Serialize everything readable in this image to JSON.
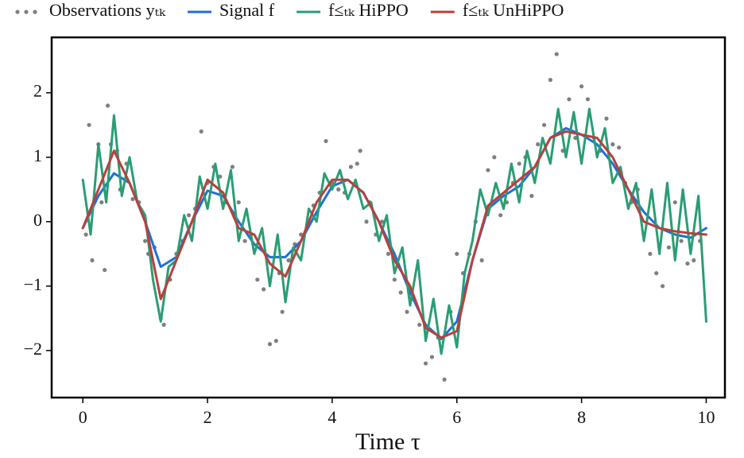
{
  "chart_data": {
    "type": "line",
    "x_label": "Time τ",
    "xlim": [
      -0.5,
      10.3
    ],
    "ylim": [
      -2.73,
      2.86
    ],
    "xticks": [
      0,
      2,
      4,
      6,
      8,
      10
    ],
    "yticks": [
      -2,
      -1,
      0,
      1,
      2
    ],
    "grid": false,
    "legend": "top",
    "series": [
      {
        "name": "Observations yₜₖ",
        "color": "#7f7f7f",
        "style": "scatter",
        "x": [
          0.05,
          0.1,
          0.15,
          0.25,
          0.3,
          0.35,
          0.4,
          0.45,
          0.55,
          0.6,
          0.7,
          0.8,
          0.9,
          1.0,
          1.05,
          1.15,
          1.25,
          1.3,
          1.4,
          1.5,
          1.6,
          1.7,
          1.8,
          1.9,
          2.0,
          2.1,
          2.2,
          2.3,
          2.4,
          2.5,
          2.6,
          2.7,
          2.8,
          2.9,
          3.0,
          3.1,
          3.15,
          3.2,
          3.3,
          3.4,
          3.5,
          3.6,
          3.7,
          3.8,
          3.9,
          4.0,
          4.1,
          4.2,
          4.3,
          4.4,
          4.45,
          4.55,
          4.6,
          4.7,
          4.8,
          4.9,
          5.0,
          5.1,
          5.2,
          5.3,
          5.4,
          5.5,
          5.6,
          5.7,
          5.8,
          5.9,
          6.0,
          6.1,
          6.2,
          6.3,
          6.4,
          6.5,
          6.6,
          6.7,
          6.8,
          6.9,
          7.0,
          7.1,
          7.2,
          7.3,
          7.4,
          7.5,
          7.6,
          7.7,
          7.8,
          7.9,
          8.0,
          8.1,
          8.2,
          8.3,
          8.4,
          8.5,
          8.6,
          8.7,
          8.8,
          8.9,
          9.0,
          9.1,
          9.2,
          9.3,
          9.4,
          9.5,
          9.6,
          9.7,
          9.8,
          9.9
        ],
        "values": [
          -0.2,
          1.5,
          -0.6,
          1.2,
          0.3,
          -0.75,
          1.8,
          1.2,
          1.1,
          0.5,
          0.9,
          0.35,
          0.3,
          -0.3,
          -0.5,
          -0.4,
          -1.5,
          -1.6,
          -0.9,
          -0.5,
          -0.3,
          0.1,
          0.2,
          1.4,
          0.6,
          0.85,
          0.7,
          0.3,
          0.85,
          0.3,
          -0.3,
          -0.2,
          -0.9,
          -1.05,
          -1.9,
          -1.85,
          -0.8,
          -1.4,
          -0.6,
          -0.35,
          -0.2,
          -0.05,
          0.25,
          0.45,
          1.25,
          0.6,
          0.5,
          0.45,
          0.85,
          0.9,
          1.1,
          0.0,
          0.3,
          -0.2,
          0.0,
          -0.5,
          -0.9,
          -1.1,
          -1.4,
          -1.2,
          -1.6,
          -2.2,
          -2.1,
          -1.8,
          -2.45,
          -1.4,
          -0.5,
          -0.8,
          -0.5,
          0.0,
          -0.6,
          0.8,
          1.0,
          0.1,
          0.3,
          0.6,
          0.9,
          1.0,
          0.4,
          1.2,
          1.5,
          2.2,
          2.6,
          1.1,
          1.9,
          1.3,
          2.1,
          1.9,
          1.3,
          1.1,
          1.6,
          1.2,
          1.15,
          0.6,
          0.3,
          0.5,
          -0.2,
          -0.5,
          -0.8,
          -1.0,
          -0.4,
          0.3,
          -0.3,
          -0.65,
          -0.6,
          -0.3
        ]
      },
      {
        "name": "Signal f",
        "color": "#1f6fd6",
        "style": "line",
        "x": [
          0,
          0.25,
          0.5,
          0.75,
          1.0,
          1.25,
          1.5,
          1.75,
          2.0,
          2.25,
          2.5,
          2.75,
          3.0,
          3.25,
          3.5,
          3.75,
          4.0,
          4.25,
          4.5,
          4.75,
          5.0,
          5.25,
          5.5,
          5.75,
          6.0,
          6.25,
          6.5,
          6.75,
          7.0,
          7.25,
          7.5,
          7.75,
          8.0,
          8.25,
          8.5,
          8.75,
          9.0,
          9.25,
          9.5,
          9.75,
          10
        ],
        "values": [
          -0.1,
          0.4,
          0.75,
          0.6,
          0.0,
          -0.7,
          -0.55,
          0.0,
          0.48,
          0.4,
          0.0,
          -0.35,
          -0.55,
          -0.55,
          -0.3,
          0.15,
          0.55,
          0.65,
          0.45,
          0.0,
          -0.5,
          -1.1,
          -1.6,
          -1.82,
          -1.55,
          -0.6,
          0.2,
          0.4,
          0.55,
          0.85,
          1.3,
          1.45,
          1.35,
          1.2,
          0.9,
          0.5,
          0.15,
          -0.1,
          -0.2,
          -0.25,
          -0.1
        ]
      },
      {
        "name": "f≤ₜₖ HiPPO",
        "color": "#2a9d74",
        "style": "line",
        "x": [
          0,
          0.125,
          0.25,
          0.375,
          0.5,
          0.625,
          0.75,
          0.875,
          1.0,
          1.125,
          1.25,
          1.375,
          1.5,
          1.625,
          1.75,
          1.875,
          2.0,
          2.125,
          2.25,
          2.375,
          2.5,
          2.625,
          2.75,
          2.875,
          3.0,
          3.125,
          3.25,
          3.375,
          3.5,
          3.625,
          3.75,
          3.875,
          4.0,
          4.125,
          4.25,
          4.375,
          4.5,
          4.625,
          4.75,
          4.875,
          5.0,
          5.125,
          5.25,
          5.375,
          5.5,
          5.625,
          5.75,
          5.875,
          6.0,
          6.125,
          6.25,
          6.375,
          6.5,
          6.625,
          6.75,
          6.875,
          7.0,
          7.125,
          7.25,
          7.375,
          7.5,
          7.625,
          7.75,
          7.875,
          8.0,
          8.125,
          8.25,
          8.375,
          8.5,
          8.625,
          8.75,
          8.875,
          9.0,
          9.125,
          9.25,
          9.375,
          9.5,
          9.625,
          9.75,
          9.875,
          10
        ],
        "values": [
          0.65,
          -0.2,
          1.2,
          0.3,
          1.65,
          0.4,
          1.0,
          0.3,
          0.1,
          -0.9,
          -1.55,
          -0.7,
          -0.6,
          0.1,
          -0.3,
          0.7,
          0.2,
          0.9,
          0.2,
          0.8,
          -0.3,
          0.2,
          -0.5,
          -0.1,
          -1.0,
          -0.2,
          -1.25,
          -0.4,
          -0.6,
          0.2,
          0.0,
          0.75,
          0.5,
          0.8,
          0.35,
          0.65,
          0.2,
          0.3,
          -0.3,
          0.1,
          -0.8,
          -0.4,
          -1.3,
          -0.6,
          -1.85,
          -1.2,
          -2.05,
          -1.3,
          -1.95,
          -0.8,
          -0.3,
          0.5,
          0.1,
          0.6,
          0.2,
          0.9,
          0.3,
          1.1,
          0.6,
          1.3,
          0.9,
          1.75,
          1.0,
          1.7,
          0.9,
          1.75,
          1.0,
          1.45,
          0.6,
          0.85,
          0.2,
          0.6,
          -0.3,
          0.5,
          -0.5,
          0.6,
          -0.6,
          0.5,
          -0.5,
          0.4,
          -1.55
        ]
      },
      {
        "name": "f≤ₜₖ UnHiPPO",
        "color": "#b8403d",
        "style": "line",
        "x": [
          0,
          0.25,
          0.5,
          0.75,
          1.0,
          1.25,
          1.5,
          1.75,
          2.0,
          2.25,
          2.5,
          2.75,
          3.0,
          3.25,
          3.5,
          3.75,
          4.0,
          4.25,
          4.5,
          4.75,
          5.0,
          5.25,
          5.5,
          5.75,
          6.0,
          6.25,
          6.5,
          6.75,
          7.0,
          7.25,
          7.5,
          7.75,
          8.0,
          8.25,
          8.5,
          8.75,
          9.0,
          9.25,
          9.5,
          9.75,
          10
        ],
        "values": [
          -0.1,
          0.5,
          1.1,
          0.6,
          0.0,
          -1.2,
          -0.6,
          0.0,
          0.65,
          0.45,
          -0.1,
          -0.2,
          -0.65,
          -0.85,
          -0.3,
          0.3,
          0.65,
          0.65,
          0.45,
          0.0,
          -0.6,
          -1.0,
          -1.65,
          -1.8,
          -1.7,
          -0.6,
          0.25,
          0.45,
          0.65,
          0.85,
          1.3,
          1.4,
          1.35,
          1.3,
          1.0,
          0.5,
          0.0,
          -0.1,
          -0.15,
          -0.18,
          -0.2
        ]
      }
    ]
  }
}
